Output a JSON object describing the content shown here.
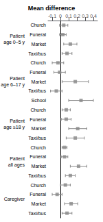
{
  "chart_data": {
    "type": "forest",
    "title": "Mean difference",
    "xlim": [
      -0.15,
      0.45
    ],
    "xticks": [
      -0.1,
      0,
      0.1,
      0.2,
      0.3,
      0.4
    ],
    "grid": false,
    "color": "#888888",
    "marker": "square",
    "groups": [
      {
        "label": "Patient\nage 0–5 y",
        "categories": [
          "Church",
          "Funeral",
          "Market",
          "Taxi/bus"
        ],
        "values": [
          0.04,
          0.03,
          0.12,
          0.08
        ],
        "lo": [
          -0.01,
          -0.01,
          0.04,
          0.02
        ],
        "hi": [
          0.09,
          0.07,
          0.2,
          0.14
        ]
      },
      {
        "label": "Patient\nage 6–17 y",
        "categories": [
          "Church",
          "Funeral",
          "Market",
          "Taxi/bus",
          "School"
        ],
        "values": [
          -0.03,
          -0.01,
          0.18,
          -0.05,
          0.25
        ],
        "lo": [
          -0.1,
          -0.08,
          0.02,
          -0.12,
          0.1
        ],
        "hi": [
          0.04,
          0.06,
          0.34,
          0.02,
          0.4
        ]
      },
      {
        "label": "Patient\nage ≥18 y",
        "categories": [
          "Church",
          "Funeral",
          "Market",
          "Taxi/bus"
        ],
        "values": [
          0.07,
          0.07,
          0.21,
          0.18
        ],
        "lo": [
          0.02,
          0.01,
          0.1,
          0.07
        ],
        "hi": [
          0.12,
          0.13,
          0.32,
          0.29
        ]
      },
      {
        "label": "Patient\nall ages",
        "categories": [
          "Church",
          "Funeral",
          "Market",
          "Taxi/bus"
        ],
        "values": [
          0.05,
          0.05,
          0.22,
          0.12
        ],
        "lo": [
          0.02,
          0.01,
          0.12,
          0.06
        ],
        "hi": [
          0.08,
          0.09,
          0.32,
          0.18
        ]
      },
      {
        "label": "Caregiver",
        "categories": [
          "Church",
          "Funeral",
          "Market",
          "Taxi/bus"
        ],
        "values": [
          0.06,
          -0.04,
          0.13,
          0.08
        ],
        "lo": [
          0.0,
          -0.1,
          0.05,
          0.02
        ],
        "hi": [
          0.12,
          0.02,
          0.21,
          0.14
        ]
      }
    ]
  }
}
